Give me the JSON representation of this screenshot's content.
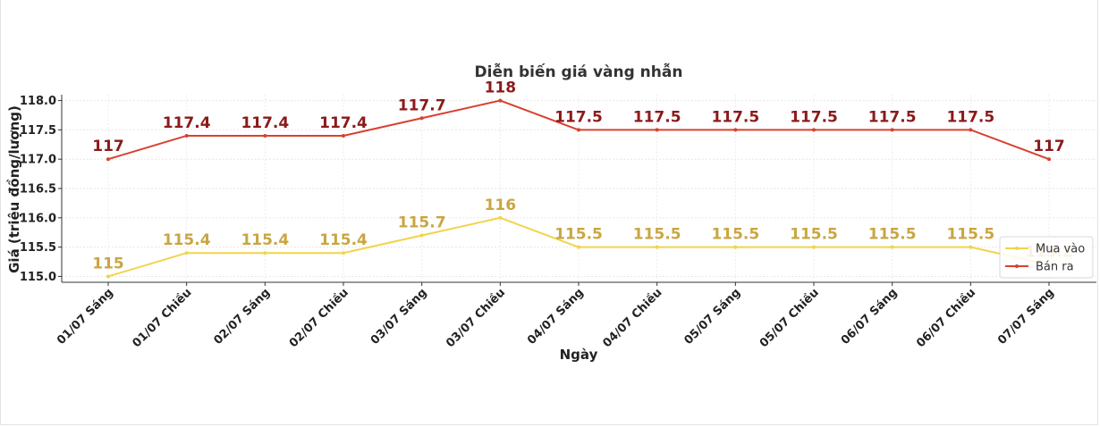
{
  "chart_data": {
    "type": "line",
    "title": "Diễn biến giá vàng nhẫn",
    "xlabel": "Ngày",
    "ylabel": "Giá (triệu đồng/lượng)",
    "categories": [
      "01/07 Sáng",
      "01/07 Chiều",
      "02/07 Sáng",
      "02/07 Chiều",
      "03/07 Sáng",
      "03/07 Chiều",
      "04/07 Sáng",
      "04/07 Chiều",
      "05/07 Sáng",
      "05/07 Chiều",
      "06/07 Sáng",
      "06/07 Chiều",
      "07/07 Sáng"
    ],
    "ylim": [
      114.9,
      118.1
    ],
    "yticks": [
      "115.0",
      "115.5",
      "116.0",
      "116.5",
      "117.0",
      "117.5",
      "118.0"
    ],
    "grid": true,
    "legend_position": "lower-right",
    "series": [
      {
        "name": "Mua vào",
        "color": "#f2d34c",
        "label_color": "#c9a642",
        "values": [
          115,
          115.4,
          115.4,
          115.4,
          115.7,
          116,
          115.5,
          115.5,
          115.5,
          115.5,
          115.5,
          115.5,
          115.2
        ],
        "labels": [
          "115",
          "115.4",
          "115.4",
          "115.4",
          "115.7",
          "116",
          "115.5",
          "115.5",
          "115.5",
          "115.5",
          "115.5",
          "115.5",
          "115.2"
        ]
      },
      {
        "name": "Bán ra",
        "color": "#d9402f",
        "label_color": "#8b1a1a",
        "values": [
          117,
          117.4,
          117.4,
          117.4,
          117.7,
          118,
          117.5,
          117.5,
          117.5,
          117.5,
          117.5,
          117.5,
          117
        ],
        "labels": [
          "117",
          "117.4",
          "117.4",
          "117.4",
          "117.7",
          "118",
          "117.5",
          "117.5",
          "117.5",
          "117.5",
          "117.5",
          "117.5",
          "117"
        ]
      }
    ]
  }
}
